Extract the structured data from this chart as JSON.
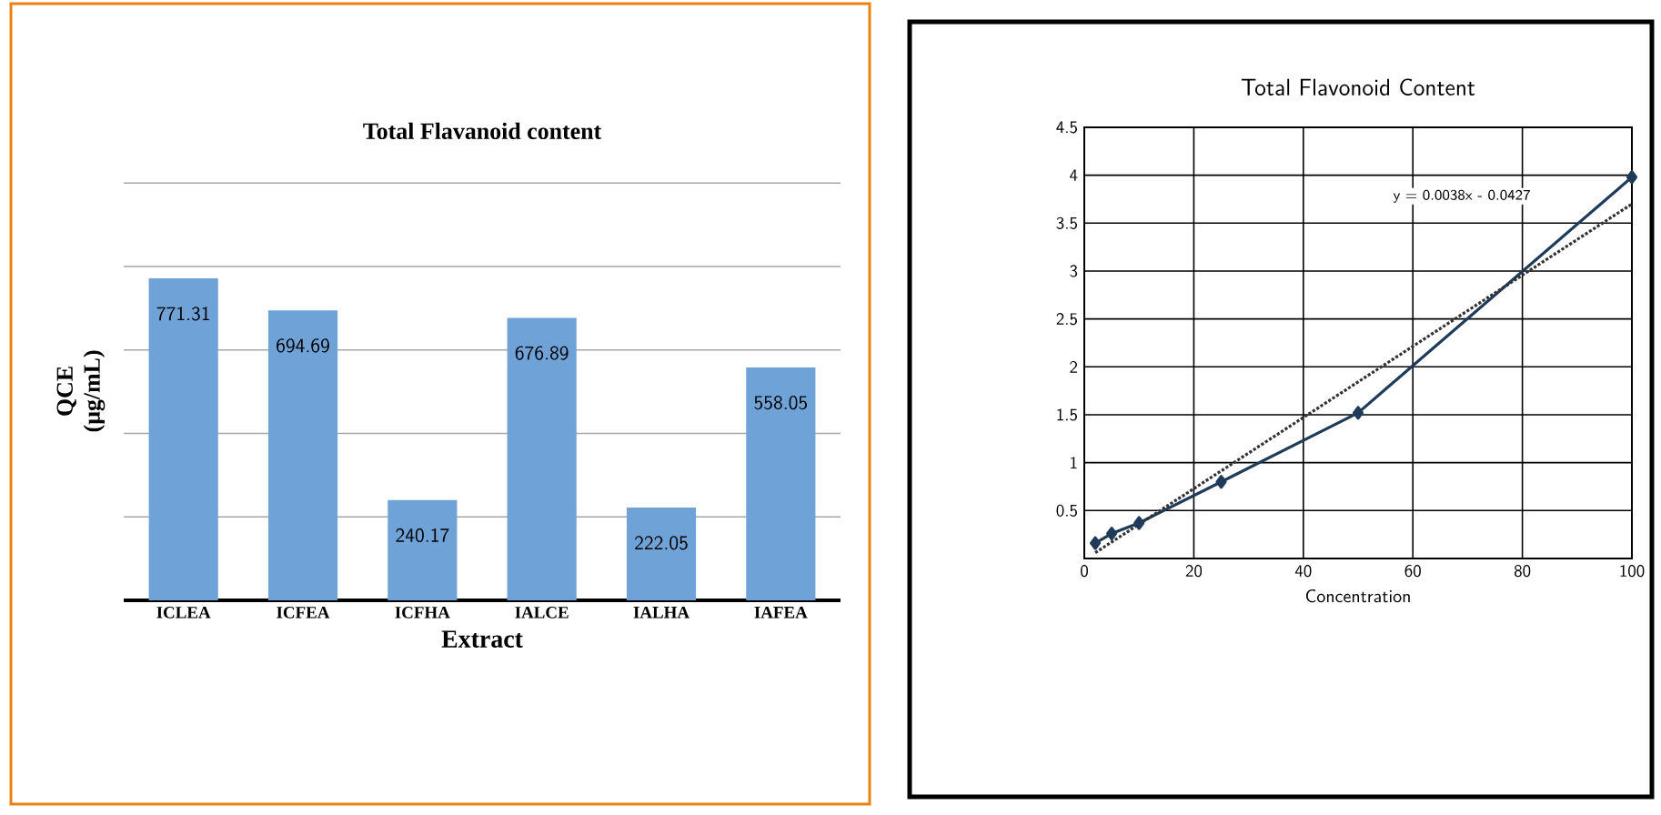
{
  "chart_data": [
    {
      "type": "bar",
      "title": "Total Flavanoid content",
      "xlabel": "Extract",
      "ylabel": "QCE (μg/mL)",
      "categories": [
        "ICLEA",
        "ICFEA",
        "ICFHA",
        "IALCE",
        "IALHA",
        "IAFEA"
      ],
      "values": [
        771.31,
        694.69,
        240.17,
        676.89,
        222.05,
        558.05
      ],
      "color": "#6fa3d8",
      "grid": "y",
      "data_labels": true,
      "tick_labels": "x"
    },
    {
      "type": "line",
      "title": "Total Flavonoid Content",
      "xlabel": "Concentration",
      "xlim": [
        0,
        100
      ],
      "xticks": [
        0,
        20,
        40,
        60,
        80,
        100
      ],
      "ylim": [
        0,
        4.5
      ],
      "yticks": [
        {
          "value": 0,
          "label": null
        },
        0.5,
        1,
        1.5,
        2,
        2.5,
        3,
        3.5,
        4,
        4.5
      ],
      "grid": true,
      "marker": "diamond",
      "line_style": "solid",
      "annotations": [
        "y = 0.0038x - 0.0427"
      ],
      "series": [
        {
          "color": "#1f3b5a",
          "x": [
            2,
            5,
            10,
            25,
            50,
            100
          ],
          "values": [
            0.16,
            0.26,
            0.37,
            0.8,
            1.52,
            3.98
          ]
        },
        {
          "color": "#333333",
          "x": [
            2,
            100
          ],
          "values": [
            0.06,
            3.7
          ],
          "line_style": "dotted",
          "marker": "none"
        }
      ]
    }
  ]
}
